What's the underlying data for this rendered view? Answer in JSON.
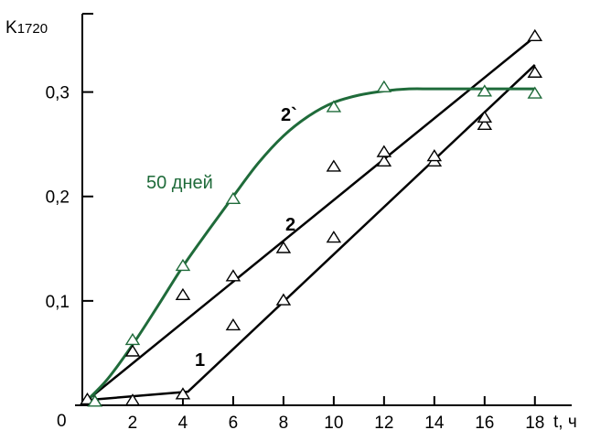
{
  "chart_data": {
    "type": "scatter",
    "xlabel": "t, ч",
    "ylabel_main": "K",
    "ylabel_sub": "1720",
    "origin_label": "0",
    "xlim": [
      0,
      19.5
    ],
    "ylim": [
      0,
      0.375
    ],
    "x_ticks": [
      2,
      4,
      6,
      8,
      10,
      12,
      14,
      16,
      18
    ],
    "x_tick_labels": [
      "2",
      "4",
      "6",
      "8",
      "10",
      "12",
      "14",
      "16",
      "18"
    ],
    "y_ticks": [
      0.1,
      0.2,
      0.3
    ],
    "y_tick_labels": [
      "0,1",
      "0,2",
      "0,3"
    ],
    "grid": false,
    "marker": "triangle-open",
    "colors": {
      "black": "#000000",
      "green": "#1f6b3a"
    },
    "series": [
      {
        "label": "1",
        "color": "#000000",
        "points": [
          [
            0.2,
            0.005
          ],
          [
            0.5,
            0.003
          ],
          [
            2,
            0.004
          ],
          [
            4,
            0.01
          ],
          [
            8,
            0.1
          ],
          [
            10,
            0.16
          ],
          [
            18,
            0.353
          ]
        ],
        "fit": [
          [
            0.2,
            0.005
          ],
          [
            4.2,
            0.013
          ],
          [
            18,
            0.326
          ]
        ]
      },
      {
        "label": "2",
        "color": "#000000",
        "points": [
          [
            2,
            0.051
          ],
          [
            4,
            0.105
          ],
          [
            6,
            0.076
          ],
          [
            6,
            0.123
          ],
          [
            8,
            0.15
          ],
          [
            10,
            0.228
          ],
          [
            12,
            0.233
          ],
          [
            12,
            0.242
          ],
          [
            14,
            0.233
          ],
          [
            14,
            0.238
          ],
          [
            16,
            0.268
          ],
          [
            16,
            0.275
          ],
          [
            18,
            0.318
          ]
        ],
        "fit": [
          [
            0.2,
            0.005
          ],
          [
            18,
            0.353
          ]
        ]
      },
      {
        "label": "2`",
        "note": "50 дней",
        "color": "#1f6b3a",
        "points": [
          [
            0.5,
            0.003
          ],
          [
            2,
            0.062
          ],
          [
            4,
            0.133
          ],
          [
            6,
            0.197
          ],
          [
            10,
            0.285
          ],
          [
            12,
            0.304
          ],
          [
            16,
            0.3
          ],
          [
            18,
            0.298
          ]
        ],
        "fit": [
          [
            0.2,
            0.005
          ],
          [
            1,
            0.025
          ],
          [
            2,
            0.058
          ],
          [
            3,
            0.095
          ],
          [
            4,
            0.133
          ],
          [
            5,
            0.167
          ],
          [
            6,
            0.2
          ],
          [
            7,
            0.232
          ],
          [
            8,
            0.258
          ],
          [
            9,
            0.277
          ],
          [
            10,
            0.29
          ],
          [
            11,
            0.297
          ],
          [
            12,
            0.301
          ],
          [
            13,
            0.303
          ],
          [
            14,
            0.303
          ],
          [
            16,
            0.303
          ],
          [
            18,
            0.303
          ]
        ]
      }
    ]
  }
}
